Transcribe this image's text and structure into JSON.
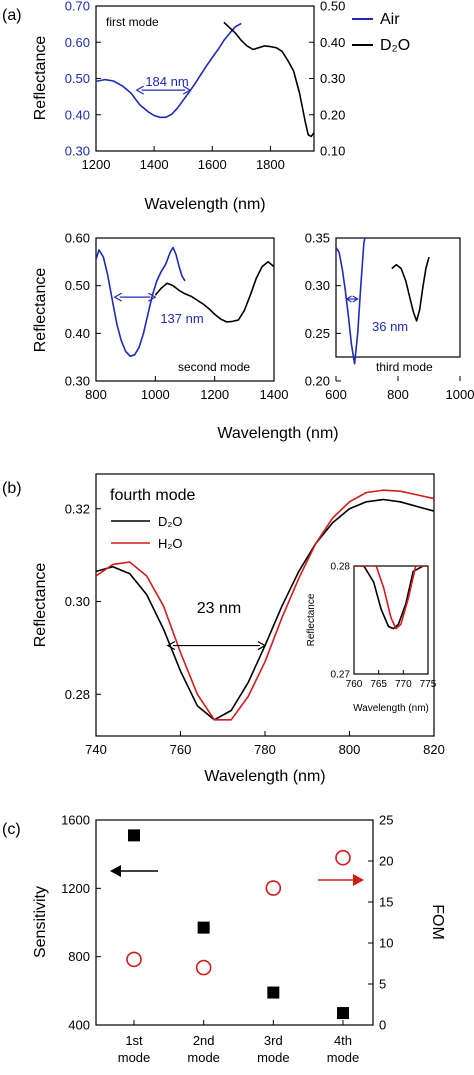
{
  "chart_data": [
    {
      "id": "a1",
      "type": "line",
      "panel_label": "(a)",
      "annotation": "first mode",
      "xlim": [
        1200,
        1950
      ],
      "xticks": [
        "1200",
        "1400",
        "1600",
        "1800"
      ],
      "xtick_values": [
        1200,
        1400,
        1600,
        1800
      ],
      "xlabel": "Wavelength (nm)",
      "ylabel": "Reflectance",
      "ylim_left": [
        0.3,
        0.7
      ],
      "yticks_left": [
        "0.30",
        "0.40",
        "0.50",
        "0.60",
        "0.70"
      ],
      "ylim_right": [
        0.1,
        0.5
      ],
      "yticks_right": [
        "0.10",
        "0.20",
        "0.30",
        "0.40",
        "0.50"
      ],
      "legend": [
        {
          "name": "Air",
          "color": "#1f2bb5"
        },
        {
          "name": "D₂O",
          "color": "#000000"
        }
      ],
      "width_label": "184 nm",
      "width_marker": {
        "x1": 1340,
        "x2": 1524,
        "y": 0.468
      },
      "series": [
        {
          "name": "Air",
          "axis": "left",
          "color": "#1f2bb5",
          "x": [
            1200,
            1230,
            1260,
            1290,
            1320,
            1350,
            1380,
            1400,
            1420,
            1440,
            1460,
            1480,
            1500,
            1520,
            1540,
            1560,
            1580,
            1600,
            1620,
            1640,
            1660,
            1680,
            1700
          ],
          "y": [
            0.492,
            0.497,
            0.493,
            0.48,
            0.46,
            0.428,
            0.408,
            0.398,
            0.393,
            0.393,
            0.401,
            0.418,
            0.44,
            0.462,
            0.485,
            0.51,
            0.535,
            0.558,
            0.58,
            0.605,
            0.625,
            0.643,
            0.652
          ]
        },
        {
          "name": "D₂O",
          "axis": "right",
          "color": "#000000",
          "x": [
            1640,
            1660,
            1680,
            1700,
            1720,
            1740,
            1760,
            1780,
            1800,
            1820,
            1840,
            1860,
            1880,
            1900,
            1920,
            1930,
            1940,
            1950
          ],
          "y": [
            0.455,
            0.44,
            0.425,
            0.405,
            0.39,
            0.38,
            0.385,
            0.39,
            0.388,
            0.385,
            0.375,
            0.35,
            0.32,
            0.26,
            0.18,
            0.145,
            0.14,
            0.15
          ]
        }
      ]
    },
    {
      "id": "a2",
      "type": "line",
      "annotation": "second mode",
      "xlim": [
        800,
        1400
      ],
      "xticks": [
        "800",
        "1000",
        "1200",
        "1400"
      ],
      "xtick_values": [
        800,
        1000,
        1200,
        1400
      ],
      "ylabel": "Reflectance",
      "ylim": [
        0.3,
        0.6
      ],
      "yticks": [
        "0.30",
        "0.40",
        "0.50",
        "0.60"
      ],
      "width_label": "137 nm",
      "width_marker": {
        "x1": 863,
        "x2": 1000,
        "y": 0.476
      },
      "series": [
        {
          "name": "Air",
          "color": "#1f2bb5",
          "x": [
            800,
            810,
            825,
            840,
            855,
            870,
            885,
            900,
            915,
            930,
            945,
            960,
            975,
            990,
            1005,
            1020,
            1035,
            1050,
            1060,
            1070,
            1080,
            1090,
            1100
          ],
          "y": [
            0.555,
            0.575,
            0.56,
            0.52,
            0.47,
            0.42,
            0.385,
            0.362,
            0.352,
            0.355,
            0.37,
            0.4,
            0.44,
            0.48,
            0.51,
            0.53,
            0.545,
            0.57,
            0.58,
            0.565,
            0.54,
            0.52,
            0.51
          ]
        },
        {
          "name": "D₂O",
          "color": "#000000",
          "x": [
            1000,
            1020,
            1040,
            1060,
            1080,
            1100,
            1120,
            1140,
            1160,
            1180,
            1200,
            1220,
            1240,
            1260,
            1280,
            1300,
            1320,
            1340,
            1360,
            1380,
            1400
          ],
          "y": [
            0.48,
            0.495,
            0.505,
            0.5,
            0.49,
            0.483,
            0.478,
            0.47,
            0.462,
            0.452,
            0.44,
            0.43,
            0.424,
            0.425,
            0.428,
            0.448,
            0.48,
            0.515,
            0.54,
            0.55,
            0.54
          ]
        }
      ]
    },
    {
      "id": "a3",
      "type": "line",
      "annotation": "third mode",
      "xlim": [
        600,
        1000
      ],
      "xticks": [
        "600",
        "800",
        "1000"
      ],
      "xtick_values": [
        600,
        800,
        1000
      ],
      "xlabel": "Wavelength (nm)",
      "ylim": [
        0.2,
        0.35
      ],
      "yticks": [
        "0.20",
        "0.25",
        "0.30",
        "0.35"
      ],
      "width_label": "36 nm",
      "width_marker": {
        "x1": 634,
        "x2": 670,
        "y": 0.286
      },
      "series": [
        {
          "name": "Air",
          "color": "#1f2bb5",
          "x": [
            600,
            610,
            620,
            630,
            640,
            650,
            660,
            670,
            680,
            690,
            700
          ],
          "y": [
            0.34,
            0.335,
            0.318,
            0.295,
            0.268,
            0.238,
            0.218,
            0.25,
            0.3,
            0.345,
            0.36
          ]
        },
        {
          "name": "D₂O",
          "color": "#000000",
          "x": [
            780,
            795,
            810,
            825,
            840,
            850,
            860,
            870,
            880,
            890,
            900
          ],
          "y": [
            0.318,
            0.322,
            0.318,
            0.305,
            0.285,
            0.272,
            0.263,
            0.275,
            0.298,
            0.318,
            0.33
          ]
        }
      ]
    },
    {
      "id": "b",
      "type": "line",
      "panel_label": "(b)",
      "annotation": "fourth mode",
      "xlim": [
        740,
        820
      ],
      "xticks": [
        "740",
        "760",
        "780",
        "800",
        "820"
      ],
      "xtick_values": [
        740,
        760,
        780,
        800,
        820
      ],
      "xlabel": "Wavelength (nm)",
      "ylabel": "Reflectance",
      "ylim": [
        0.271,
        0.3275
      ],
      "yticks": [
        "0.28",
        "0.30",
        "0.32"
      ],
      "ytick_values": [
        0.28,
        0.3,
        0.32
      ],
      "legend": [
        {
          "name": "D₂O",
          "color": "#000000"
        },
        {
          "name": "H₂O",
          "color": "#d21b1b"
        }
      ],
      "width_label": "23 nm",
      "width_marker": {
        "x1": 757,
        "x2": 780,
        "y": 0.2905
      },
      "series": [
        {
          "name": "D₂O",
          "color": "#000000",
          "x": [
            740,
            744,
            748,
            752,
            756,
            760,
            764,
            768,
            772,
            776,
            780,
            784,
            788,
            792,
            796,
            800,
            804,
            808,
            812,
            816,
            820
          ],
          "y": [
            0.3065,
            0.3075,
            0.306,
            0.3015,
            0.294,
            0.285,
            0.2775,
            0.2745,
            0.2765,
            0.2825,
            0.2905,
            0.299,
            0.3065,
            0.3125,
            0.317,
            0.32,
            0.3215,
            0.322,
            0.3215,
            0.3205,
            0.3195
          ]
        },
        {
          "name": "H₂O",
          "color": "#d21b1b",
          "x": [
            740,
            744,
            748,
            752,
            756,
            760,
            764,
            768,
            772,
            776,
            780,
            784,
            788,
            792,
            796,
            800,
            804,
            808,
            812,
            816,
            820
          ],
          "y": [
            0.3055,
            0.308,
            0.3085,
            0.3055,
            0.299,
            0.289,
            0.28,
            0.2745,
            0.2745,
            0.2795,
            0.287,
            0.2965,
            0.305,
            0.3125,
            0.318,
            0.3215,
            0.3235,
            0.324,
            0.3238,
            0.323,
            0.3222
          ]
        }
      ],
      "inset": {
        "xlim": [
          760,
          775
        ],
        "xticks": [
          "760",
          "765",
          "770",
          "775"
        ],
        "xtick_values": [
          760,
          765,
          770,
          775
        ],
        "xlabel": "Wavelength (nm)",
        "ylabel": "Reflectance",
        "ylim": [
          0.27,
          0.28
        ],
        "yticks": [
          "0.27",
          "0.28"
        ],
        "ytick_values": [
          0.27,
          0.28
        ],
        "series": [
          {
            "name": "D₂O",
            "color": "#000000",
            "x": [
              760,
              762,
              764,
              765.5,
              767,
              768,
              769,
              770.5,
              772,
              774,
              775
            ],
            "y": [
              0.28,
              0.28,
              0.2785,
              0.276,
              0.2744,
              0.2742,
              0.2746,
              0.2765,
              0.2795,
              0.28,
              0.28
            ]
          },
          {
            "name": "H₂O",
            "color": "#d21b1b",
            "x": [
              760,
              763,
              764.5,
              766,
              767.5,
              768.5,
              769.5,
              771,
              772.5,
              775
            ],
            "y": [
              0.28,
              0.28,
              0.28,
              0.278,
              0.2752,
              0.2742,
              0.2746,
              0.277,
              0.28,
              0.28
            ]
          }
        ]
      }
    },
    {
      "id": "c",
      "type": "scatter",
      "panel_label": "(c)",
      "categories": [
        "1st\nmode",
        "2nd\nmode",
        "3rd\nmode",
        "4th\nmode"
      ],
      "ylabel_left": "Sensitivity",
      "ylim_left": [
        400,
        1600
      ],
      "yticks_left": [
        "400",
        "800",
        "1200",
        "1600"
      ],
      "ytick_values_left": [
        400,
        800,
        1200,
        1600
      ],
      "ylabel_right": "FOM",
      "ylim_right": [
        0,
        25
      ],
      "yticks_right": [
        "0",
        "5",
        "10",
        "15",
        "20",
        "25"
      ],
      "ytick_values_right": [
        0,
        5,
        10,
        15,
        20,
        25
      ],
      "right_color": "#d21b1b",
      "series": [
        {
          "name": "Sensitivity",
          "axis": "left",
          "marker": "square",
          "color": "#000000",
          "values": [
            1510,
            970,
            590,
            470
          ]
        },
        {
          "name": "FOM",
          "axis": "right",
          "marker": "circle",
          "color": "#d21b1b",
          "values": [
            8.0,
            7.0,
            16.7,
            20.4
          ]
        }
      ]
    }
  ]
}
